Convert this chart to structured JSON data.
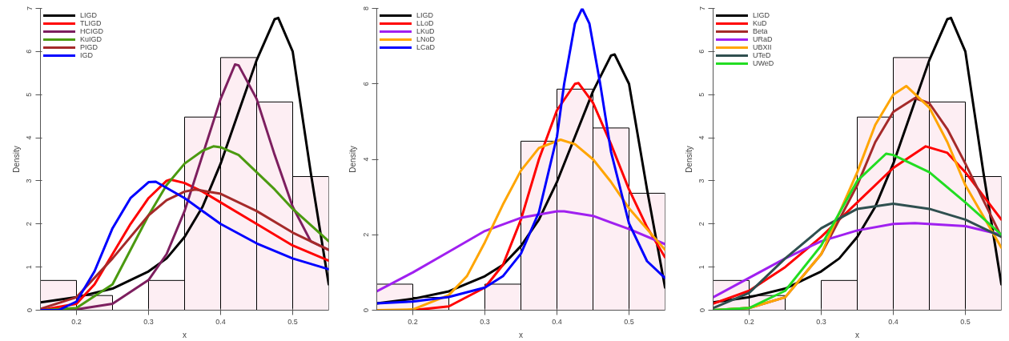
{
  "chart_data": [
    {
      "type": "histogram",
      "xlabel": "x",
      "ylabel": "Density",
      "bins": [
        0.15,
        0.2,
        0.25,
        0.3,
        0.35,
        0.4,
        0.45,
        0.5,
        0.55
      ],
      "values": [
        0.69,
        0.34,
        0,
        0.69,
        4.48,
        5.86,
        4.83,
        3.1
      ],
      "color": "#fdeef3",
      "xlim": [
        0.15,
        0.55
      ],
      "ylim": [
        0,
        7
      ],
      "xticks": [
        0.2,
        0.3,
        0.4,
        0.5
      ],
      "yticks": [
        0,
        1,
        2,
        3,
        4,
        5,
        6,
        7
      ],
      "legend": "top left",
      "grid": false,
      "series": [
        {
          "type": "line",
          "name": "LIGD",
          "color": "#000000",
          "x": [
            0.15,
            0.2,
            0.25,
            0.3,
            0.325,
            0.35,
            0.375,
            0.4,
            0.425,
            0.45,
            0.475,
            0.48,
            0.5,
            0.525,
            0.55
          ],
          "values": [
            0.18,
            0.3,
            0.5,
            0.9,
            1.2,
            1.7,
            2.4,
            3.4,
            4.6,
            5.8,
            6.75,
            6.78,
            6.0,
            3.2,
            0.6
          ]
        },
        {
          "type": "line",
          "name": "TLIGD",
          "color": "#ff0000",
          "x": [
            0.15,
            0.2,
            0.225,
            0.25,
            0.275,
            0.3,
            0.325,
            0.33,
            0.35,
            0.375,
            0.4,
            0.45,
            0.5,
            0.55
          ],
          "values": [
            0,
            0.15,
            0.6,
            1.3,
            2.0,
            2.6,
            3.0,
            3.03,
            2.95,
            2.75,
            2.5,
            2.0,
            1.5,
            1.15
          ]
        },
        {
          "type": "line",
          "name": "HCIGD",
          "color": "#7d1f5f",
          "x": [
            0.15,
            0.2,
            0.25,
            0.3,
            0.325,
            0.35,
            0.375,
            0.4,
            0.42,
            0.425,
            0.45,
            0.475,
            0.5,
            0.525,
            0.55
          ],
          "values": [
            0,
            0.02,
            0.15,
            0.7,
            1.3,
            2.3,
            3.6,
            4.9,
            5.7,
            5.68,
            4.9,
            3.6,
            2.4,
            1.6,
            1.4
          ]
        },
        {
          "type": "line",
          "name": "KuIGD",
          "color": "#4b9a10",
          "x": [
            0.15,
            0.2,
            0.25,
            0.3,
            0.325,
            0.35,
            0.375,
            0.39,
            0.4,
            0.425,
            0.45,
            0.475,
            0.5,
            0.55
          ],
          "values": [
            0,
            0.05,
            0.6,
            2.2,
            2.9,
            3.4,
            3.7,
            3.8,
            3.78,
            3.6,
            3.2,
            2.8,
            2.35,
            1.6
          ]
        },
        {
          "type": "line",
          "name": "PIGD",
          "color": "#a52a2a",
          "x": [
            0.15,
            0.2,
            0.25,
            0.3,
            0.325,
            0.35,
            0.365,
            0.4,
            0.45,
            0.5,
            0.55
          ],
          "values": [
            0.03,
            0.3,
            1.2,
            2.2,
            2.55,
            2.75,
            2.8,
            2.7,
            2.3,
            1.8,
            1.4
          ]
        },
        {
          "type": "line",
          "name": "IGD",
          "color": "#0000ff",
          "x": [
            0.15,
            0.175,
            0.2,
            0.225,
            0.25,
            0.275,
            0.3,
            0.31,
            0.35,
            0.4,
            0.45,
            0.5,
            0.55
          ],
          "values": [
            0,
            0,
            0.2,
            0.9,
            1.9,
            2.6,
            2.97,
            2.98,
            2.6,
            2.0,
            1.55,
            1.2,
            0.95
          ]
        }
      ]
    },
    {
      "type": "histogram",
      "xlabel": "x",
      "ylabel": "Density",
      "bins": [
        0.15,
        0.2,
        0.25,
        0.3,
        0.35,
        0.4,
        0.45,
        0.5,
        0.55
      ],
      "values": [
        0.69,
        0.34,
        0,
        0.69,
        4.48,
        5.86,
        4.83,
        3.1
      ],
      "color": "#fdeef3",
      "xlim": [
        0.15,
        0.55
      ],
      "ylim": [
        0,
        8
      ],
      "xticks": [
        0.2,
        0.3,
        0.4,
        0.5
      ],
      "yticks": [
        0,
        2,
        4,
        6,
        8
      ],
      "legend": "top left",
      "grid": false,
      "series": [
        {
          "type": "line",
          "name": "LIGD",
          "color": "#000000",
          "x": [
            0.15,
            0.2,
            0.25,
            0.3,
            0.325,
            0.35,
            0.375,
            0.4,
            0.425,
            0.45,
            0.475,
            0.48,
            0.5,
            0.525,
            0.55
          ],
          "values": [
            0.18,
            0.3,
            0.5,
            0.9,
            1.2,
            1.7,
            2.4,
            3.4,
            4.6,
            5.8,
            6.75,
            6.78,
            6.0,
            3.2,
            0.6
          ]
        },
        {
          "type": "line",
          "name": "LLoD",
          "color": "#ff0000",
          "x": [
            0.15,
            0.2,
            0.25,
            0.3,
            0.325,
            0.35,
            0.375,
            0.4,
            0.425,
            0.43,
            0.45,
            0.475,
            0.5,
            0.525,
            0.55
          ],
          "values": [
            0,
            0,
            0.1,
            0.6,
            1.2,
            2.4,
            4.0,
            5.3,
            6.0,
            6.02,
            5.5,
            4.4,
            3.2,
            2.2,
            1.4
          ]
        },
        {
          "type": "line",
          "name": "LKuD",
          "color": "#a020f0",
          "x": [
            0.15,
            0.2,
            0.25,
            0.3,
            0.35,
            0.4,
            0.41,
            0.45,
            0.5,
            0.55
          ],
          "values": [
            0.5,
            1.0,
            1.55,
            2.1,
            2.45,
            2.62,
            2.62,
            2.5,
            2.15,
            1.75
          ]
        },
        {
          "type": "line",
          "name": "LNoD",
          "color": "#ffa500",
          "x": [
            0.15,
            0.2,
            0.25,
            0.275,
            0.3,
            0.325,
            0.35,
            0.375,
            0.405,
            0.425,
            0.45,
            0.475,
            0.5,
            0.55
          ],
          "values": [
            0,
            0.02,
            0.4,
            0.9,
            1.8,
            2.8,
            3.7,
            4.3,
            4.52,
            4.4,
            4.0,
            3.4,
            2.7,
            1.6
          ]
        },
        {
          "type": "line",
          "name": "LCaD",
          "color": "#0000ff",
          "x": [
            0.15,
            0.2,
            0.25,
            0.3,
            0.325,
            0.35,
            0.375,
            0.4,
            0.41,
            0.425,
            0.435,
            0.445,
            0.46,
            0.475,
            0.5,
            0.525,
            0.55
          ],
          "values": [
            0.18,
            0.23,
            0.35,
            0.6,
            0.9,
            1.5,
            2.6,
            4.6,
            6.0,
            7.6,
            8.0,
            7.6,
            6.0,
            4.2,
            2.3,
            1.3,
            0.85
          ]
        }
      ]
    },
    {
      "type": "histogram",
      "xlabel": "x",
      "ylabel": "Density",
      "bins": [
        0.15,
        0.2,
        0.25,
        0.3,
        0.35,
        0.4,
        0.45,
        0.5,
        0.55
      ],
      "values": [
        0.69,
        0.34,
        0,
        0.69,
        4.48,
        5.86,
        4.83,
        3.1
      ],
      "color": "#fdeef3",
      "xlim": [
        0.15,
        0.55
      ],
      "ylim": [
        0,
        7
      ],
      "xticks": [
        0.2,
        0.3,
        0.4,
        0.5
      ],
      "yticks": [
        0,
        1,
        2,
        3,
        4,
        5,
        6,
        7
      ],
      "legend": "top left",
      "grid": false,
      "series": [
        {
          "type": "line",
          "name": "LIGD",
          "color": "#000000",
          "x": [
            0.15,
            0.2,
            0.25,
            0.3,
            0.325,
            0.35,
            0.375,
            0.4,
            0.425,
            0.45,
            0.475,
            0.48,
            0.5,
            0.525,
            0.55
          ],
          "values": [
            0.18,
            0.3,
            0.5,
            0.9,
            1.2,
            1.7,
            2.4,
            3.4,
            4.6,
            5.8,
            6.75,
            6.78,
            6.0,
            3.2,
            0.6
          ]
        },
        {
          "type": "line",
          "name": "KuD",
          "color": "#ff0000",
          "x": [
            0.15,
            0.2,
            0.25,
            0.3,
            0.35,
            0.4,
            0.445,
            0.475,
            0.5,
            0.55
          ],
          "values": [
            0.15,
            0.45,
            1.0,
            1.7,
            2.5,
            3.3,
            3.8,
            3.65,
            3.2,
            2.1
          ]
        },
        {
          "type": "line",
          "name": "Beta",
          "color": "#a52a2a",
          "x": [
            0.15,
            0.2,
            0.25,
            0.3,
            0.35,
            0.375,
            0.4,
            0.43,
            0.45,
            0.475,
            0.5,
            0.55
          ],
          "values": [
            0,
            0.05,
            0.3,
            1.3,
            2.9,
            3.9,
            4.6,
            4.92,
            4.8,
            4.2,
            3.4,
            1.7
          ]
        },
        {
          "type": "line",
          "name": "URaD",
          "color": "#a020f0",
          "x": [
            0.15,
            0.2,
            0.25,
            0.3,
            0.35,
            0.4,
            0.43,
            0.5,
            0.55
          ],
          "values": [
            0.3,
            0.75,
            1.2,
            1.6,
            1.85,
            2.0,
            2.02,
            1.95,
            1.75
          ]
        },
        {
          "type": "line",
          "name": "UBXII",
          "color": "#ffa500",
          "x": [
            0.15,
            0.2,
            0.25,
            0.3,
            0.35,
            0.375,
            0.4,
            0.418,
            0.45,
            0.475,
            0.5,
            0.55
          ],
          "values": [
            0,
            0.05,
            0.3,
            1.3,
            3.2,
            4.3,
            5.0,
            5.2,
            4.7,
            3.9,
            2.9,
            1.45
          ]
        },
        {
          "type": "line",
          "name": "UTeD",
          "color": "#2f4f4f",
          "x": [
            0.15,
            0.2,
            0.25,
            0.3,
            0.35,
            0.4,
            0.45,
            0.5,
            0.55
          ],
          "values": [
            0.05,
            0.4,
            1.2,
            1.9,
            2.35,
            2.47,
            2.35,
            2.1,
            1.7
          ]
        },
        {
          "type": "line",
          "name": "UWeD",
          "color": "#22dd22",
          "x": [
            0.15,
            0.2,
            0.25,
            0.3,
            0.35,
            0.39,
            0.4,
            0.45,
            0.5,
            0.55
          ],
          "values": [
            0,
            0.05,
            0.45,
            1.5,
            3.0,
            3.63,
            3.6,
            3.2,
            2.5,
            1.75
          ]
        }
      ]
    }
  ]
}
